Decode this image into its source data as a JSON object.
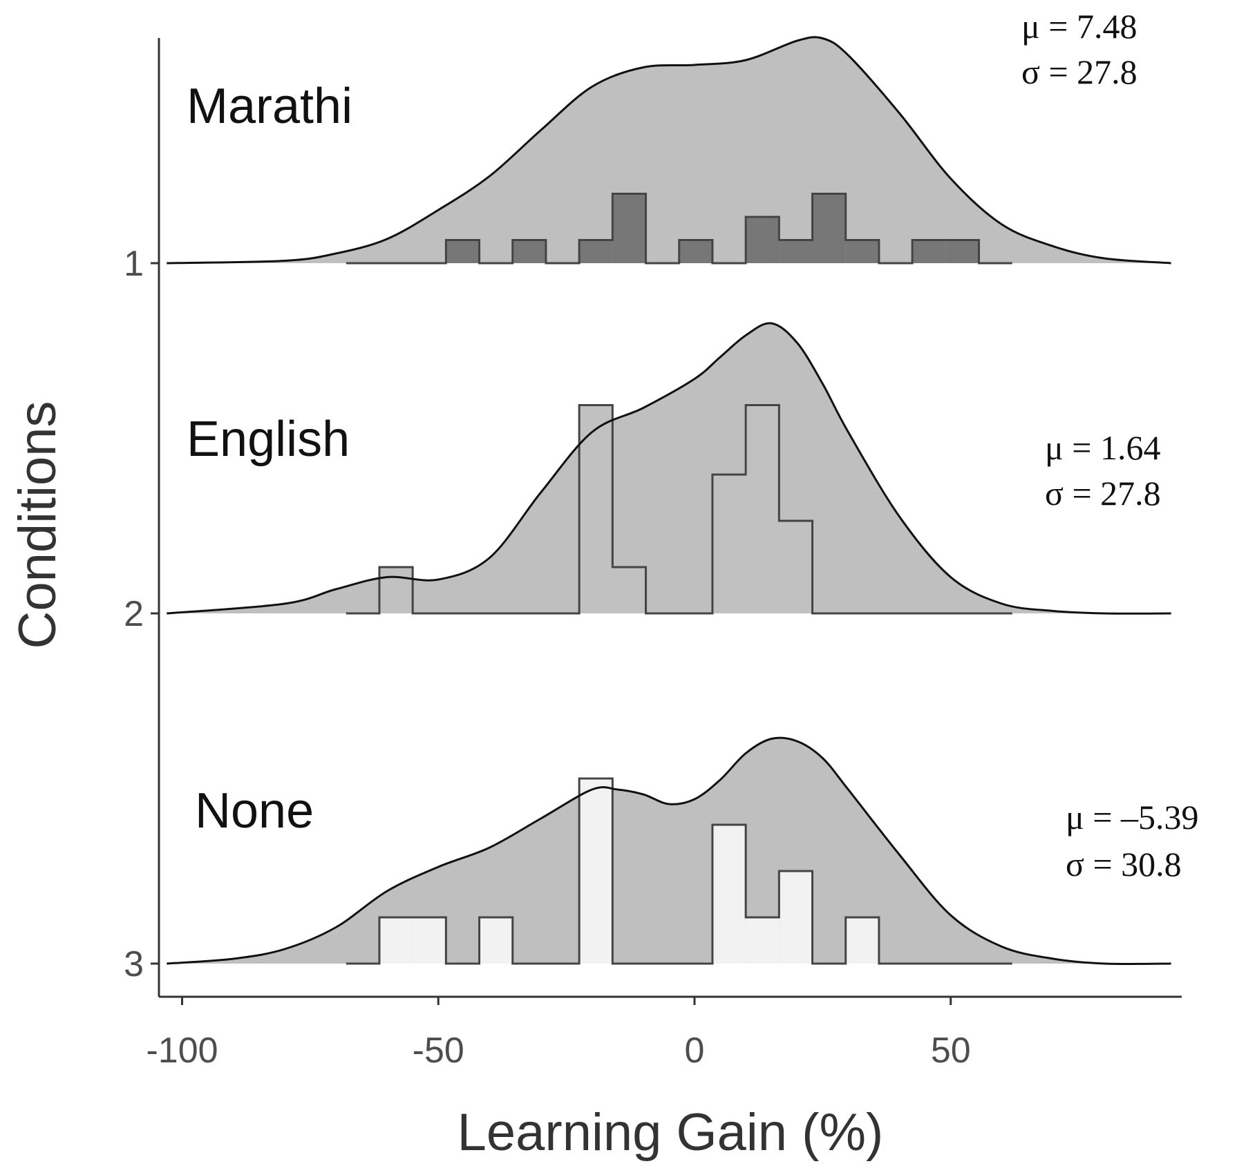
{
  "chart_data": {
    "type": "ridgeline-histogram",
    "xlabel": "Learning Gain (%)",
    "ylabel": "Conditions",
    "xlim": [
      -105,
      95
    ],
    "x_ticks": [
      -100,
      -50,
      0,
      50
    ],
    "y_ticks": [
      "1",
      "2",
      "3"
    ],
    "bin_width": 6.5,
    "bin_start": -68,
    "series": [
      {
        "name": "Marathi",
        "row": "1",
        "mean_label": "μ = 7.48",
        "sd_label": "σ = 27.8",
        "bar_fill": "#777777",
        "hist_counts": [
          0,
          0,
          0,
          1,
          0,
          1,
          0,
          1,
          3,
          0,
          1,
          0,
          2,
          1,
          3,
          1,
          0,
          1,
          1,
          0
        ],
        "density_x": [
          -103,
          -80,
          -70,
          -60,
          -50,
          -40,
          -30,
          -20,
          -10,
          0,
          10,
          20,
          25,
          30,
          40,
          50,
          60,
          70,
          80,
          93
        ],
        "density_y": [
          0.0,
          0.01,
          0.04,
          0.1,
          0.22,
          0.36,
          0.55,
          0.73,
          0.81,
          0.82,
          0.84,
          0.92,
          0.93,
          0.86,
          0.62,
          0.35,
          0.16,
          0.07,
          0.02,
          0.0
        ]
      },
      {
        "name": "English",
        "row": "2",
        "mean_label": "μ = 1.64",
        "sd_label": "σ = 27.8",
        "bar_fill": "#c1c1c1",
        "hist_counts": [
          0,
          2,
          0,
          0,
          0,
          0,
          0,
          9,
          2,
          0,
          0,
          6,
          9,
          4,
          0,
          0,
          0,
          0,
          0,
          0
        ],
        "density_x": [
          -103,
          -80,
          -70,
          -60,
          -50,
          -40,
          -30,
          -20,
          -10,
          0,
          5,
          10,
          15,
          20,
          25,
          30,
          40,
          50,
          60,
          70,
          80,
          93
        ],
        "density_y": [
          0.0,
          0.04,
          0.1,
          0.15,
          0.14,
          0.23,
          0.5,
          0.75,
          0.85,
          0.97,
          1.06,
          1.15,
          1.2,
          1.12,
          0.95,
          0.75,
          0.4,
          0.15,
          0.04,
          0.01,
          0.0,
          0.0
        ]
      },
      {
        "name": "None",
        "row": "3",
        "mean_label": "μ = –5.39",
        "sd_label": "σ = 30.8",
        "bar_fill": "#f2f2f2",
        "hist_counts": [
          0,
          2,
          2,
          0,
          2,
          0,
          0,
          8,
          0,
          0,
          0,
          6,
          2,
          4,
          0,
          2,
          0,
          0,
          0,
          0
        ],
        "density_x": [
          -103,
          -90,
          -80,
          -70,
          -60,
          -50,
          -40,
          -30,
          -20,
          -15,
          -10,
          -5,
          0,
          5,
          10,
          15,
          20,
          25,
          30,
          40,
          50,
          60,
          70,
          80,
          93
        ],
        "density_y": [
          0.0,
          0.02,
          0.06,
          0.15,
          0.3,
          0.4,
          0.48,
          0.6,
          0.72,
          0.72,
          0.7,
          0.66,
          0.68,
          0.76,
          0.87,
          0.93,
          0.92,
          0.85,
          0.72,
          0.45,
          0.2,
          0.07,
          0.02,
          0.0,
          0.0
        ]
      }
    ],
    "density_fill": "#a9a9a9",
    "density_opacity": 0.75,
    "grid": false,
    "legend": "none"
  }
}
